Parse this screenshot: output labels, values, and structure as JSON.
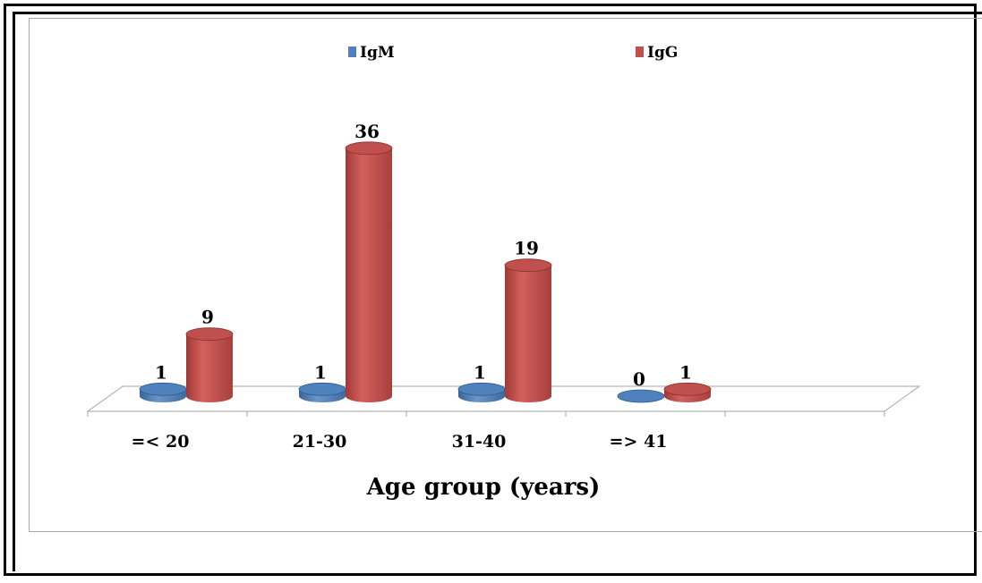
{
  "chart_data": {
    "type": "bar",
    "categories": [
      "=< 20",
      "21-30",
      "31-40",
      "=> 41"
    ],
    "series": [
      {
        "name": "IgM",
        "values": [
          1,
          1,
          1,
          0
        ]
      },
      {
        "name": "IgG",
        "values": [
          9,
          36,
          19,
          1
        ]
      }
    ],
    "title": "",
    "xlabel": "Age group (years)",
    "ylabel": "",
    "ylim": [
      0,
      40
    ],
    "grid": false,
    "legend": "top-center",
    "data_labels": true,
    "style": "3d-cylinder"
  },
  "colors": {
    "IgM": "#4f81bd",
    "IgG": "#c0504d",
    "axis": "#a6a6a6"
  }
}
